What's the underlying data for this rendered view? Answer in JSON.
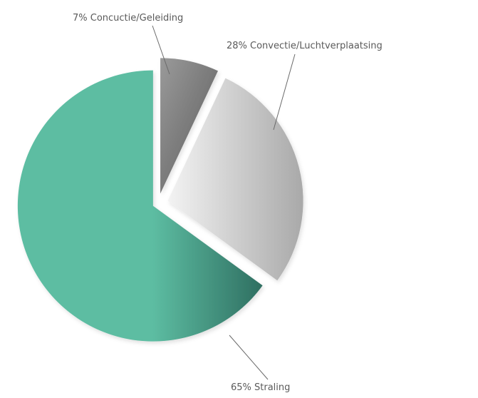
{
  "chart_data": {
    "type": "pie",
    "title": "",
    "slices": [
      {
        "label": "7% Concuctie/Geleiding",
        "value": 7,
        "color_light": "#9a9a9a",
        "color_dark": "#5a5a5a"
      },
      {
        "label": "28% Convectie/Luchtverplaatsing",
        "value": 28,
        "color_light": "#f3f3f3",
        "color_dark": "#a9a9a9"
      },
      {
        "label": "65% Straling",
        "value": 65,
        "color_light": "#5dbda2",
        "color_dark": "#2f6f61"
      }
    ],
    "exploded": true,
    "legend": "none"
  }
}
